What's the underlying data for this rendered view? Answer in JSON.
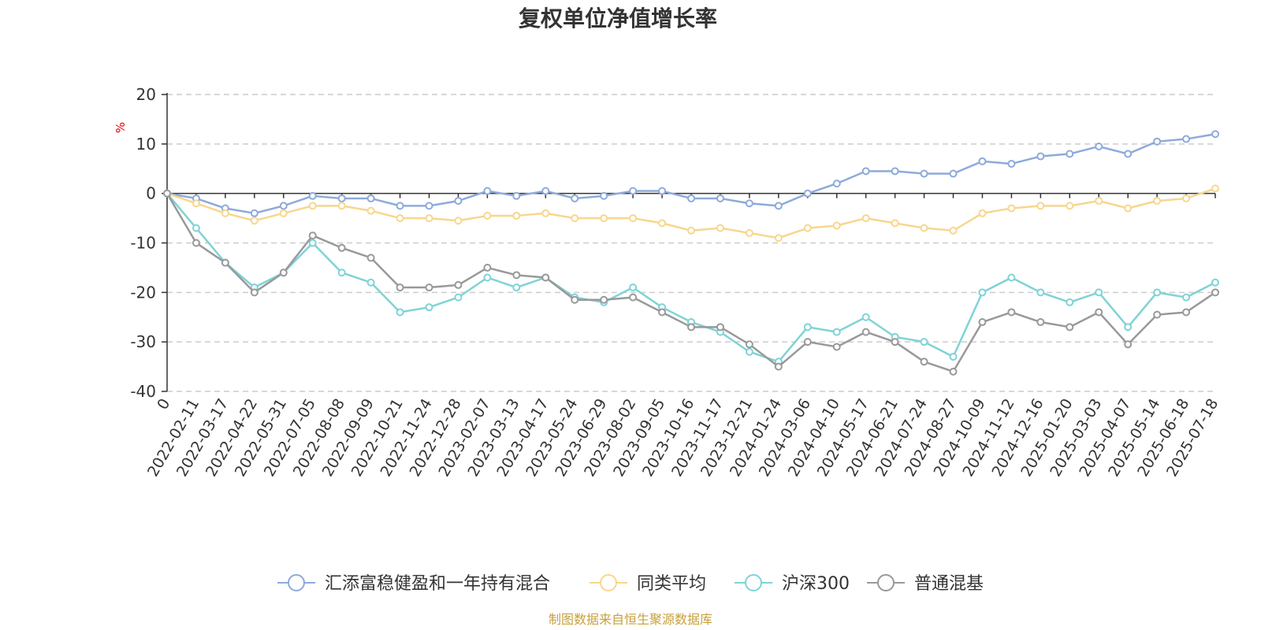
{
  "chart_data": {
    "type": "line",
    "title": "复权单位净值增长率",
    "ylabel": "%",
    "ylim": [
      -40,
      20
    ],
    "yticks": [
      "20",
      "10",
      "0",
      "-10",
      "-20",
      "-30",
      "-40"
    ],
    "grid": "dashed horizontal",
    "legend_position": "bottom",
    "x": [
      "0",
      "2022-02-11",
      "2022-03-17",
      "2022-04-22",
      "2022-05-31",
      "2022-07-05",
      "2022-08-08",
      "2022-09-09",
      "2022-10-21",
      "2022-11-24",
      "2022-12-28",
      "2023-02-07",
      "2023-03-13",
      "2023-04-17",
      "2023-05-24",
      "2023-06-29",
      "2023-08-02",
      "2023-09-05",
      "2023-10-16",
      "2023-11-17",
      "2023-12-21",
      "2024-01-24",
      "2024-03-06",
      "2024-04-10",
      "2024-05-17",
      "2024-06-21",
      "2024-07-24",
      "2024-08-27",
      "2024-10-09",
      "2024-11-12",
      "2024-12-16",
      "2025-01-20",
      "2025-03-03",
      "2025-04-07",
      "2025-05-14",
      "2025-06-18",
      "2025-07-18"
    ],
    "series": [
      {
        "name": "汇添富稳健盈和一年持有混合",
        "color": "#8eaadb",
        "values": [
          0,
          -1,
          -3,
          -4,
          -2.5,
          -0.5,
          -1,
          -1,
          -2.5,
          -2.5,
          -1.5,
          0.5,
          -0.5,
          0.5,
          -1,
          -0.5,
          0.5,
          0.5,
          -1,
          -1,
          -2,
          -2.5,
          0,
          2,
          4.5,
          4.5,
          4,
          4,
          6.5,
          6,
          7.5,
          8,
          9.5,
          8,
          10.5,
          11,
          12
        ]
      },
      {
        "name": "同类平均",
        "color": "#f8d68c",
        "values": [
          0,
          -2,
          -4,
          -5.5,
          -4,
          -2.5,
          -2.5,
          -3.5,
          -5,
          -5,
          -5.5,
          -4.5,
          -4.5,
          -4,
          -5,
          -5,
          -5,
          -6,
          -7.5,
          -7,
          -8,
          -9,
          -7,
          -6.5,
          -5,
          -6,
          -7,
          -7.5,
          -4,
          -3,
          -2.5,
          -2.5,
          -1.5,
          -3,
          -1.5,
          -1,
          1
        ]
      },
      {
        "name": "沪深300",
        "color": "#7fd3d6",
        "values": [
          0,
          -7,
          -14,
          -19,
          -16,
          -10,
          -16,
          -18,
          -24,
          -23,
          -21,
          -17,
          -19,
          -17,
          -21,
          -22,
          -19,
          -23,
          -26,
          -28,
          -32,
          -34,
          -27,
          -28,
          -25,
          -29,
          -30,
          -33,
          -20,
          -17,
          -20,
          -22,
          -20,
          -27,
          -20,
          -21,
          -18
        ]
      },
      {
        "name": "普通混基",
        "color": "#999999",
        "values": [
          0,
          -10,
          -14,
          -20,
          -16,
          -8.5,
          -11,
          -13,
          -19,
          -19,
          -18.5,
          -15,
          -16.5,
          -17,
          -21.5,
          -21.5,
          -21,
          -24,
          -27,
          -27,
          -30.5,
          -35,
          -30,
          -31,
          -28,
          -30,
          -34,
          -36,
          -26,
          -24,
          -26,
          -27,
          -24,
          -30.5,
          -24.5,
          -24,
          -20
        ]
      }
    ]
  },
  "source_text": "制图数据来自恒生聚源数据库",
  "colors": {
    "axis": "#333333",
    "grid": "#cccccc",
    "unit": "#e60000",
    "source": "#c8a03c"
  }
}
